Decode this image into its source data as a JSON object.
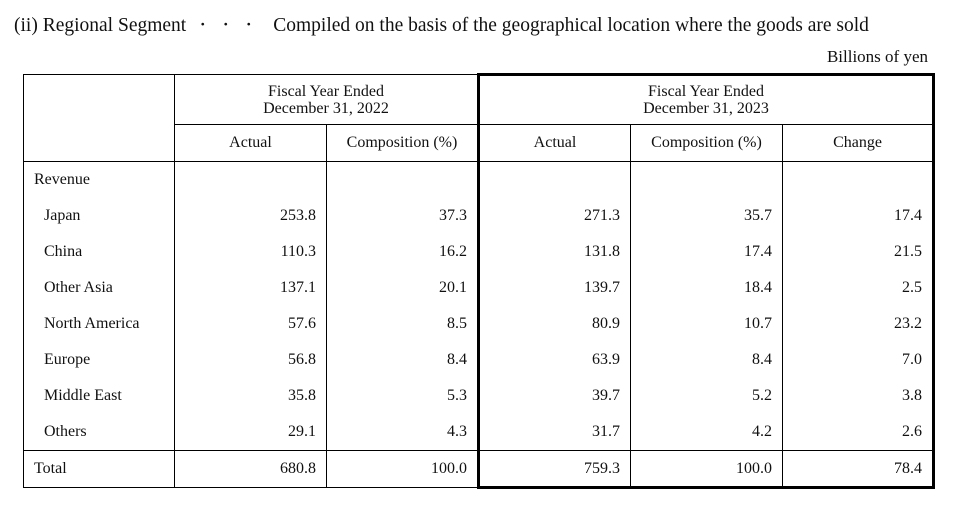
{
  "heading": {
    "prefix": "(ii) Regional Segment",
    "separator": "・・・",
    "description": "Compiled on the basis of the geographical location where the goods are sold"
  },
  "unit_label": "Billions of yen",
  "table": {
    "fy2022_header_line1": "Fiscal Year Ended",
    "fy2022_header_line2": "December 31, 2022",
    "fy2023_header_line1": "Fiscal Year Ended",
    "fy2023_header_line2": "December 31, 2023",
    "col_actual": "Actual",
    "col_composition": "Composition (%)",
    "col_change": "Change",
    "section_label": "Revenue",
    "rows": [
      {
        "label": "Japan",
        "a2022": "253.8",
        "c2022": "37.3",
        "a2023": "271.3",
        "c2023": "35.7",
        "change": "17.4"
      },
      {
        "label": "China",
        "a2022": "110.3",
        "c2022": "16.2",
        "a2023": "131.8",
        "c2023": "17.4",
        "change": "21.5"
      },
      {
        "label": "Other Asia",
        "a2022": "137.1",
        "c2022": "20.1",
        "a2023": "139.7",
        "c2023": "18.4",
        "change": "2.5"
      },
      {
        "label": "North America",
        "a2022": "57.6",
        "c2022": "8.5",
        "a2023": "80.9",
        "c2023": "10.7",
        "change": "23.2"
      },
      {
        "label": "Europe",
        "a2022": "56.8",
        "c2022": "8.4",
        "a2023": "63.9",
        "c2023": "8.4",
        "change": "7.0"
      },
      {
        "label": "Middle East",
        "a2022": "35.8",
        "c2022": "5.3",
        "a2023": "39.7",
        "c2023": "5.2",
        "change": "3.8"
      },
      {
        "label": "Others",
        "a2022": "29.1",
        "c2022": "4.3",
        "a2023": "31.7",
        "c2023": "4.2",
        "change": "2.6"
      }
    ],
    "total": {
      "label": "Total",
      "a2022": "680.8",
      "c2022": "100.0",
      "a2023": "759.3",
      "c2023": "100.0",
      "change": "78.4"
    }
  }
}
